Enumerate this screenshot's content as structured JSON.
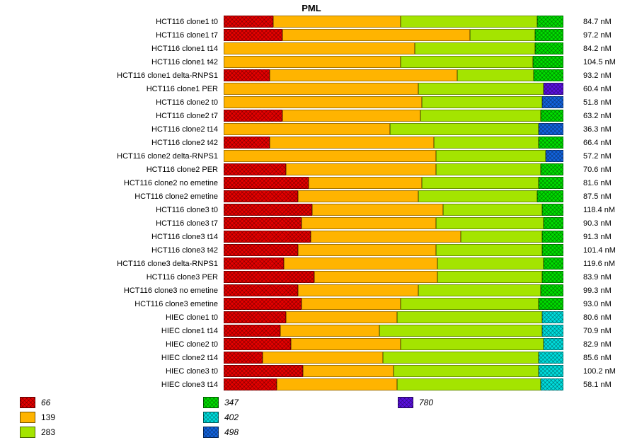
{
  "title": "PML",
  "chart_data": {
    "type": "bar",
    "orientation": "horizontal",
    "stacked": true,
    "normalized_percent": true,
    "title": "PML",
    "unit": "nM",
    "xlim": [
      0,
      100
    ],
    "grid": false,
    "legend_position": "bottom",
    "colors": {
      "66": "#e60000",
      "139": "#ffb400",
      "283": "#a4e400",
      "347": "#00dd00",
      "402": "#00dddd",
      "498": "#1263dd",
      "780": "#5a10e0"
    },
    "hatched_keys": [
      "66",
      "347",
      "402",
      "498",
      "780"
    ],
    "categories": [
      "HCT116 clone1 t0",
      "HCT116 clone1 t7",
      "HCT116 clone1 t14",
      "HCT116 clone1 t42",
      "HCT116 clone1 delta-RNPS1",
      "HCT116 clone1 PER",
      "HCT116 clone2 t0",
      "HCT116 clone2 t7",
      "HCT116 clone2 t14",
      "HCT116 clone2 t42",
      "HCT116 clone2 delta-RNPS1",
      "HCT116 clone2 PER",
      "HCT116 clone2 no emetine",
      "HCT116 clone2 emetine",
      "HCT116 clone3 t0",
      "HCT116 clone3 t7",
      "HCT116 clone3 t14",
      "HCT116 clone3 t42",
      "HCT116 clone3 delta-RNPS1",
      "HCT116 clone3 PER",
      "HCT116 clone3 no emetine",
      "HCT116 clone3 emetine",
      "HIEC clone1 t0",
      "HIEC clone1 t14",
      "HIEC clone2 t0",
      "HIEC clone2 t14",
      "HIEC clone3 t0",
      "HIEC clone3 t14"
    ],
    "rows": [
      {
        "label": "HCT116 clone1 t0",
        "value": "84.7 nM",
        "segments": [
          {
            "key": "66",
            "pct": 14.6
          },
          {
            "key": "139",
            "pct": 37.5
          },
          {
            "key": "283",
            "pct": 40.2
          },
          {
            "key": "347",
            "pct": 7.7
          }
        ]
      },
      {
        "label": "HCT116 clone1 t7",
        "value": "97.2 nM",
        "segments": [
          {
            "key": "66",
            "pct": 17.3
          },
          {
            "key": "139",
            "pct": 55.2
          },
          {
            "key": "283",
            "pct": 19.2
          },
          {
            "key": "347",
            "pct": 8.3
          }
        ]
      },
      {
        "label": "HCT116 clone1 t14",
        "value": "84.2 nM",
        "segments": [
          {
            "key": "139",
            "pct": 56.3
          },
          {
            "key": "283",
            "pct": 35.4
          },
          {
            "key": "347",
            "pct": 8.3
          }
        ]
      },
      {
        "label": "HCT116 clone1 t42",
        "value": "104.5 nM",
        "segments": [
          {
            "key": "139",
            "pct": 52.1
          },
          {
            "key": "283",
            "pct": 39.0
          },
          {
            "key": "347",
            "pct": 8.9
          }
        ]
      },
      {
        "label": "HCT116 clone1 delta-RNPS1",
        "value": "93.2 nM",
        "segments": [
          {
            "key": "66",
            "pct": 13.5
          },
          {
            "key": "139",
            "pct": 55.2
          },
          {
            "key": "283",
            "pct": 22.5
          },
          {
            "key": "347",
            "pct": 8.8
          }
        ]
      },
      {
        "label": "HCT116 clone1 PER",
        "value": "60.4 nM",
        "segments": [
          {
            "key": "139",
            "pct": 57.3
          },
          {
            "key": "283",
            "pct": 36.9
          },
          {
            "key": "780",
            "pct": 5.8
          }
        ]
      },
      {
        "label": "HCT116 clone2 t0",
        "value": "51.8 nM",
        "segments": [
          {
            "key": "139",
            "pct": 58.3
          },
          {
            "key": "283",
            "pct": 35.4
          },
          {
            "key": "498",
            "pct": 6.3
          }
        ]
      },
      {
        "label": "HCT116 clone2 t7",
        "value": "63.2 nM",
        "segments": [
          {
            "key": "66",
            "pct": 17.3
          },
          {
            "key": "139",
            "pct": 40.6
          },
          {
            "key": "283",
            "pct": 35.4
          },
          {
            "key": "347",
            "pct": 6.7
          }
        ]
      },
      {
        "label": "HCT116 clone2 t14",
        "value": "36.3 nM",
        "segments": [
          {
            "key": "139",
            "pct": 49.0
          },
          {
            "key": "283",
            "pct": 43.8
          },
          {
            "key": "498",
            "pct": 7.2
          }
        ]
      },
      {
        "label": "HCT116 clone2 t42",
        "value": "66.4 nM",
        "segments": [
          {
            "key": "66",
            "pct": 13.5
          },
          {
            "key": "139",
            "pct": 48.3
          },
          {
            "key": "283",
            "pct": 30.9
          },
          {
            "key": "347",
            "pct": 7.3
          }
        ]
      },
      {
        "label": "HCT116 clone2 delta-RNPS1",
        "value": "57.2 nM",
        "segments": [
          {
            "key": "139",
            "pct": 62.5
          },
          {
            "key": "283",
            "pct": 32.3
          },
          {
            "key": "498",
            "pct": 5.2
          }
        ]
      },
      {
        "label": "HCT116 clone2 PER",
        "value": "70.6 nM",
        "segments": [
          {
            "key": "66",
            "pct": 18.3
          },
          {
            "key": "139",
            "pct": 44.2
          },
          {
            "key": "283",
            "pct": 30.8
          },
          {
            "key": "347",
            "pct": 6.7
          }
        ]
      },
      {
        "label": "HCT116 clone2 no emetine",
        "value": "81.6 nM",
        "segments": [
          {
            "key": "66",
            "pct": 25.0
          },
          {
            "key": "139",
            "pct": 33.3
          },
          {
            "key": "283",
            "pct": 34.4
          },
          {
            "key": "347",
            "pct": 7.3
          }
        ]
      },
      {
        "label": "HCT116 clone2 emetine",
        "value": "87.5 nM",
        "segments": [
          {
            "key": "66",
            "pct": 21.9
          },
          {
            "key": "139",
            "pct": 35.4
          },
          {
            "key": "283",
            "pct": 35.0
          },
          {
            "key": "347",
            "pct": 7.7
          }
        ]
      },
      {
        "label": "HCT116 clone3 t0",
        "value": "118.4 nM",
        "segments": [
          {
            "key": "66",
            "pct": 26.0
          },
          {
            "key": "139",
            "pct": 38.5
          },
          {
            "key": "283",
            "pct": 29.2
          },
          {
            "key": "347",
            "pct": 6.3
          }
        ]
      },
      {
        "label": "HCT116 clone3 t7",
        "value": "90.3 nM",
        "segments": [
          {
            "key": "66",
            "pct": 22.9
          },
          {
            "key": "139",
            "pct": 39.6
          },
          {
            "key": "283",
            "pct": 31.7
          },
          {
            "key": "347",
            "pct": 5.8
          }
        ]
      },
      {
        "label": "HCT116 clone3 t14",
        "value": "91.3 nM",
        "segments": [
          {
            "key": "66",
            "pct": 25.6
          },
          {
            "key": "139",
            "pct": 44.2
          },
          {
            "key": "283",
            "pct": 23.9
          },
          {
            "key": "347",
            "pct": 6.3
          }
        ]
      },
      {
        "label": "HCT116 clone3 t42",
        "value": "101.4 nM",
        "segments": [
          {
            "key": "66",
            "pct": 21.9
          },
          {
            "key": "139",
            "pct": 40.6
          },
          {
            "key": "283",
            "pct": 31.2
          },
          {
            "key": "347",
            "pct": 6.3
          }
        ]
      },
      {
        "label": "HCT116 clone3 delta-RNPS1",
        "value": "119.6 nM",
        "segments": [
          {
            "key": "66",
            "pct": 17.7
          },
          {
            "key": "139",
            "pct": 45.2
          },
          {
            "key": "283",
            "pct": 31.3
          },
          {
            "key": "347",
            "pct": 5.8
          }
        ]
      },
      {
        "label": "HCT116 clone3 PER",
        "value": "83.9 nM",
        "segments": [
          {
            "key": "66",
            "pct": 26.7
          },
          {
            "key": "139",
            "pct": 36.2
          },
          {
            "key": "283",
            "pct": 30.8
          },
          {
            "key": "347",
            "pct": 6.3
          }
        ]
      },
      {
        "label": "HCT116 clone3 no emetine",
        "value": "99.3 nM",
        "segments": [
          {
            "key": "66",
            "pct": 21.9
          },
          {
            "key": "139",
            "pct": 35.4
          },
          {
            "key": "283",
            "pct": 36.0
          },
          {
            "key": "347",
            "pct": 6.7
          }
        ]
      },
      {
        "label": "HCT116 clone3 emetine",
        "value": "93.0 nM",
        "segments": [
          {
            "key": "66",
            "pct": 22.9
          },
          {
            "key": "139",
            "pct": 29.2
          },
          {
            "key": "283",
            "pct": 40.6
          },
          {
            "key": "347",
            "pct": 7.3
          }
        ]
      },
      {
        "label": "HIEC clone1 t0",
        "value": "80.6 nM",
        "segments": [
          {
            "key": "66",
            "pct": 18.3
          },
          {
            "key": "139",
            "pct": 32.7
          },
          {
            "key": "283",
            "pct": 42.7
          },
          {
            "key": "402",
            "pct": 6.3
          }
        ]
      },
      {
        "label": "HIEC clone1 t14",
        "value": "70.9 nM",
        "segments": [
          {
            "key": "66",
            "pct": 16.7
          },
          {
            "key": "139",
            "pct": 29.2
          },
          {
            "key": "283",
            "pct": 47.8
          },
          {
            "key": "402",
            "pct": 6.3
          }
        ]
      },
      {
        "label": "HIEC clone2 t0",
        "value": "82.9 nM",
        "segments": [
          {
            "key": "66",
            "pct": 19.8
          },
          {
            "key": "139",
            "pct": 32.3
          },
          {
            "key": "283",
            "pct": 42.1
          },
          {
            "key": "402",
            "pct": 5.8
          }
        ]
      },
      {
        "label": "HIEC clone2 t14",
        "value": "85.6 nM",
        "segments": [
          {
            "key": "66",
            "pct": 11.5
          },
          {
            "key": "139",
            "pct": 35.4
          },
          {
            "key": "283",
            "pct": 45.8
          },
          {
            "key": "402",
            "pct": 7.3
          }
        ]
      },
      {
        "label": "HIEC clone3 t0",
        "value": "100.2 nM",
        "segments": [
          {
            "key": "66",
            "pct": 23.3
          },
          {
            "key": "139",
            "pct": 26.7
          },
          {
            "key": "283",
            "pct": 42.7
          },
          {
            "key": "402",
            "pct": 7.3
          }
        ]
      },
      {
        "label": "HIEC clone3 t14",
        "value": "58.1 nM",
        "segments": [
          {
            "key": "66",
            "pct": 15.6
          },
          {
            "key": "139",
            "pct": 35.4
          },
          {
            "key": "283",
            "pct": 42.3
          },
          {
            "key": "402",
            "pct": 6.7
          }
        ]
      }
    ]
  },
  "legend": {
    "columns": [
      {
        "items": [
          {
            "key": "66",
            "label": "66",
            "italic": true
          },
          {
            "key": "139",
            "label": "139",
            "italic": false
          },
          {
            "key": "283",
            "label": "283",
            "italic": false
          }
        ]
      },
      {
        "items": [
          {
            "key": "347",
            "label": "347",
            "italic": true
          },
          {
            "key": "402",
            "label": "402",
            "italic": true
          },
          {
            "key": "498",
            "label": "498",
            "italic": true
          }
        ]
      },
      {
        "items": [
          {
            "key": "780",
            "label": "780",
            "italic": true
          }
        ]
      }
    ]
  }
}
